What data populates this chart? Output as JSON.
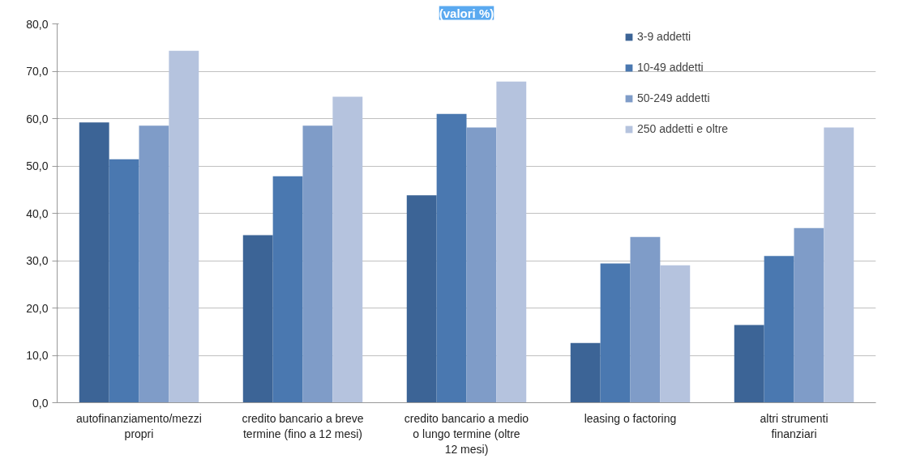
{
  "chart_data": {
    "type": "bar",
    "title": "(valori %)",
    "categories": [
      "autofinanziamento/mezzi propri",
      "credito bancario a breve termine (fino a 12 mesi)",
      "credito bancario a medio o lungo termine (oltre 12 mesi)",
      "leasing o factoring",
      "altri strumenti finanziari"
    ],
    "series": [
      {
        "name": "3-9 addetti",
        "color": "#3c6496",
        "values": [
          59.2,
          35.4,
          43.8,
          12.6,
          16.4
        ]
      },
      {
        "name": "10-49 addetti",
        "color": "#4a78b0",
        "values": [
          51.4,
          47.8,
          61.0,
          29.4,
          31.0
        ]
      },
      {
        "name": "50-249 addetti",
        "color": "#7f9cc8",
        "values": [
          58.5,
          58.5,
          58.1,
          35.0,
          36.9
        ]
      },
      {
        "name": "250 addetti e oltre",
        "color": "#b5c3de",
        "values": [
          74.3,
          64.6,
          67.8,
          29.0,
          58.1
        ]
      }
    ],
    "ylim": [
      0,
      80
    ],
    "yticks": [
      {
        "value": 0,
        "label": "0,0"
      },
      {
        "value": 10,
        "label": "10,0"
      },
      {
        "value": 20,
        "label": "20,0"
      },
      {
        "value": 30,
        "label": "30,0"
      },
      {
        "value": 40,
        "label": "40,0"
      },
      {
        "value": 50,
        "label": "50,0"
      },
      {
        "value": 60,
        "label": "60,0"
      },
      {
        "value": 70,
        "label": "70,0"
      },
      {
        "value": 80,
        "label": "80,0"
      }
    ],
    "grid": "y",
    "legend": "top right"
  }
}
